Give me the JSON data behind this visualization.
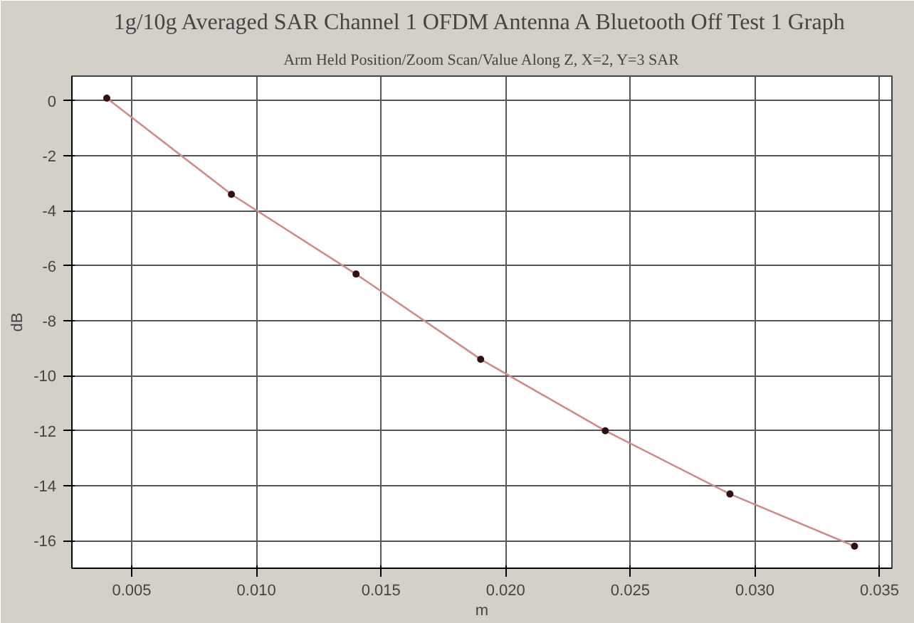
{
  "chart_data": {
    "type": "line",
    "title": "1g/10g Averaged SAR Channel 1 OFDM Antenna A Bluetooth Off Test 1 Graph",
    "subtitle": "Arm Held Position/Zoom Scan/Value Along Z, X=2, Y=3 SAR",
    "xlabel": "m",
    "ylabel": "dB",
    "x": [
      0.004,
      0.009,
      0.014,
      0.019,
      0.024,
      0.029,
      0.034
    ],
    "series": [
      {
        "color": "#d08a8a",
        "values": [
          0.1,
          -3.4,
          -6.3,
          -9.4,
          -12.0,
          -14.3,
          -16.2
        ]
      }
    ],
    "marker": "circle",
    "line_style": "solid",
    "xlim": [
      0.0026,
      0.0355
    ],
    "ylim": [
      -17.0,
      0.9
    ],
    "xticks": [
      {
        "value": 0.005,
        "label": "0.005"
      },
      {
        "value": 0.01,
        "label": "0.010"
      },
      {
        "value": 0.015,
        "label": "0.015"
      },
      {
        "value": 0.02,
        "label": "0.020"
      },
      {
        "value": 0.025,
        "label": "0.025"
      },
      {
        "value": 0.03,
        "label": "0.030"
      },
      {
        "value": 0.035,
        "label": "0.035"
      }
    ],
    "yticks": [
      0,
      -2,
      -4,
      -6,
      -8,
      -10,
      -12,
      -14,
      -16
    ],
    "grid": true
  }
}
